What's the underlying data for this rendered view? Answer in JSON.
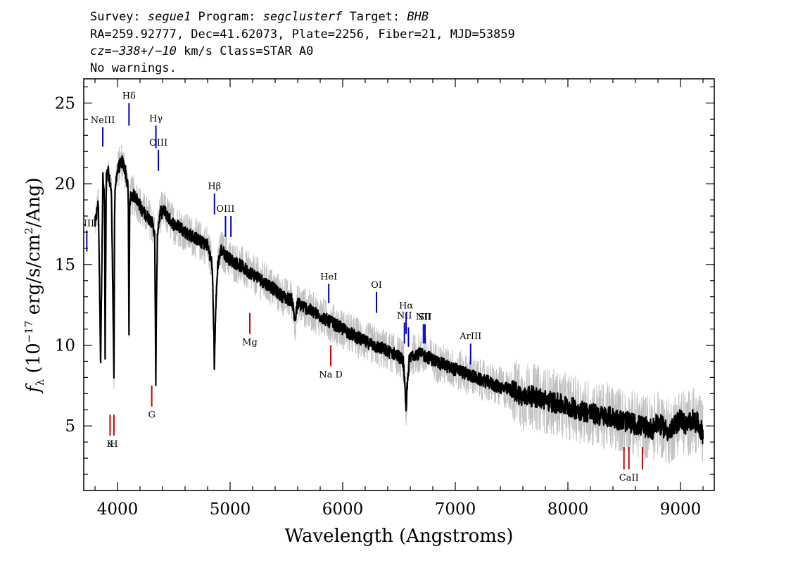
{
  "header": {
    "line1": [
      "Survey: ",
      "segue1",
      " Program: ",
      "segclusterf",
      " Target: ",
      "BHB"
    ],
    "line2": "RA=259.92777, Dec=41.62073, Plate=2256, Fiber=21, MJD=53859",
    "line3": [
      "cz=",
      "−338+/−10",
      " km/s Class=STAR A0"
    ],
    "line4": "No warnings."
  },
  "chart_data": {
    "type": "line",
    "xlabel": "Wavelength (Angstroms)",
    "ylabel": "f_λ (10^-17 erg/s/cm^2/Ang)",
    "xlim": [
      3700,
      9300
    ],
    "ylim": [
      1,
      26.5
    ],
    "xticks": [
      4000,
      5000,
      6000,
      7000,
      8000,
      9000
    ],
    "yticks": [
      5,
      10,
      15,
      20,
      25
    ],
    "grid": false,
    "colors": {
      "spectrum": "#000000",
      "error_band": "#c0c0c0",
      "emission": "#0000cc",
      "absorption": "#cc0000"
    },
    "spectrum": {
      "x": [
        3800,
        3830,
        3850,
        3870,
        3885,
        3890,
        3900,
        3915,
        3930,
        3945,
        3960,
        3968,
        3975,
        3990,
        4010,
        4040,
        4070,
        4095,
        4102,
        4108,
        4130,
        4160,
        4190,
        4220,
        4260,
        4300,
        4330,
        4340,
        4345,
        4355,
        4380,
        4420,
        4460,
        4500,
        4560,
        4620,
        4680,
        4740,
        4800,
        4840,
        4855,
        4861,
        4868,
        4890,
        4920,
        4960,
        5000,
        5050,
        5100,
        5150,
        5200,
        5250,
        5300,
        5350,
        5400,
        5450,
        5500,
        5550,
        5577,
        5600,
        5650,
        5700,
        5750,
        5800,
        5850,
        5900,
        5950,
        6000,
        6050,
        6100,
        6150,
        6200,
        6250,
        6300,
        6350,
        6400,
        6450,
        6500,
        6540,
        6555,
        6563,
        6570,
        6590,
        6620,
        6650,
        6700,
        6750,
        6800,
        6850,
        6900,
        6950,
        7000,
        7050,
        7100,
        7150,
        7200,
        7250,
        7300,
        7350,
        7400,
        7450,
        7500,
        7550,
        7600,
        7650,
        7700,
        7750,
        7800,
        7850,
        7900,
        7950,
        8000,
        8050,
        8100,
        8150,
        8200,
        8250,
        8300,
        8350,
        8400,
        8450,
        8500,
        8550,
        8600,
        8650,
        8700,
        8750,
        8800,
        8850,
        8900,
        8950,
        9000,
        9050,
        9100,
        9150,
        9200
      ],
      "y": [
        17.5,
        18.8,
        9.0,
        20.4,
        18.8,
        9.0,
        20.3,
        20.8,
        20.2,
        19.6,
        12.8,
        8.0,
        19.0,
        20.5,
        21.0,
        21.4,
        20.8,
        19.6,
        10.5,
        19.0,
        19.3,
        19.2,
        18.8,
        18.3,
        18.0,
        17.7,
        17.0,
        7.8,
        12.0,
        17.0,
        18.2,
        18.3,
        17.8,
        17.5,
        17.3,
        16.9,
        16.7,
        16.4,
        16.2,
        15.0,
        11.0,
        8.4,
        11.5,
        15.0,
        15.9,
        15.6,
        15.3,
        15.1,
        14.9,
        14.6,
        14.4,
        14.2,
        13.9,
        13.7,
        13.4,
        13.1,
        12.9,
        12.8,
        11.5,
        12.6,
        12.4,
        12.2,
        12.0,
        11.8,
        11.6,
        11.4,
        11.2,
        11.0,
        10.8,
        10.6,
        10.4,
        10.2,
        10.1,
        9.9,
        9.8,
        9.6,
        9.5,
        9.3,
        9.0,
        7.0,
        5.5,
        7.2,
        9.0,
        9.4,
        9.5,
        9.4,
        9.3,
        9.1,
        8.9,
        8.8,
        8.6,
        8.5,
        8.4,
        8.2,
        8.1,
        7.9,
        7.8,
        7.7,
        7.5,
        7.4,
        7.3,
        7.2,
        7.1,
        6.7,
        6.9,
        6.8,
        6.7,
        6.6,
        6.5,
        6.4,
        6.3,
        6.2,
        6.1,
        6.0,
        5.9,
        5.8,
        5.7,
        5.6,
        5.6,
        5.5,
        5.4,
        5.3,
        5.2,
        5.1,
        5.0,
        4.9,
        4.8,
        5.2,
        4.9,
        4.6,
        5.0,
        5.5,
        5.0,
        5.4,
        5.2,
        4.5
      ]
    },
    "lines": [
      {
        "label": "NII",
        "x": 3727,
        "y": [
          15.8,
          17.1
        ],
        "color": "blue"
      },
      {
        "label": "NeIII",
        "x": 3869,
        "y": [
          22.3,
          23.5
        ],
        "color": "blue"
      },
      {
        "label": "Hδ",
        "x": 4102,
        "y": [
          23.6,
          25.0
        ],
        "color": "blue"
      },
      {
        "label": "Hγ",
        "x": 4341,
        "y": [
          22.2,
          23.6
        ],
        "color": "blue"
      },
      {
        "label": "OIII",
        "x": 4363,
        "y": [
          20.8,
          22.1
        ],
        "color": "blue"
      },
      {
        "label": "Hβ",
        "x": 4861,
        "y": [
          18.1,
          19.4
        ],
        "color": "blue"
      },
      {
        "label": "OIII",
        "x": 4959,
        "y": [
          16.7,
          18.0
        ],
        "color": "blue"
      },
      {
        "label": "",
        "x": 5007,
        "y": [
          16.7,
          18.0
        ],
        "color": "blue"
      },
      {
        "label": "HeI",
        "x": 5876,
        "y": [
          12.6,
          13.8
        ],
        "color": "blue"
      },
      {
        "label": "OI",
        "x": 6300,
        "y": [
          12.0,
          13.3
        ],
        "color": "blue"
      },
      {
        "label": "NII",
        "x": 6548,
        "y": [
          10.1,
          11.4
        ],
        "color": "blue"
      },
      {
        "label": "Hα",
        "x": 6563,
        "y": [
          10.7,
          12.0
        ],
        "color": "blue"
      },
      {
        "label": "",
        "x": 6584,
        "y": [
          9.9,
          11.1
        ],
        "color": "blue"
      },
      {
        "label": "NII",
        "x": 6717,
        "y": [
          10.1,
          11.3
        ],
        "color": "blue"
      },
      {
        "label": "SII",
        "x": 6731,
        "y": [
          10.1,
          11.3
        ],
        "color": "blue"
      },
      {
        "label": "ArIII",
        "x": 7136,
        "y": [
          8.8,
          10.1
        ],
        "color": "blue"
      },
      {
        "label": "K",
        "x": 3934,
        "y": [
          4.4,
          5.7
        ],
        "color": "red"
      },
      {
        "label": "H",
        "x": 3968,
        "y": [
          4.4,
          5.7
        ],
        "color": "red"
      },
      {
        "label": "G",
        "x": 4304,
        "y": [
          6.2,
          7.5
        ],
        "color": "red"
      },
      {
        "label": "Mg",
        "x": 5175,
        "y": [
          10.7,
          12.0
        ],
        "color": "red"
      },
      {
        "label": "Na D",
        "x": 5894,
        "y": [
          8.7,
          10.0
        ],
        "color": "red"
      },
      {
        "label": "",
        "x": 8498,
        "y": [
          2.3,
          3.7
        ],
        "color": "red"
      },
      {
        "label": "CaII",
        "x": 8542,
        "y": [
          2.3,
          3.7
        ],
        "color": "red"
      },
      {
        "label": "",
        "x": 8662,
        "y": [
          2.3,
          3.7
        ],
        "color": "red"
      }
    ]
  }
}
